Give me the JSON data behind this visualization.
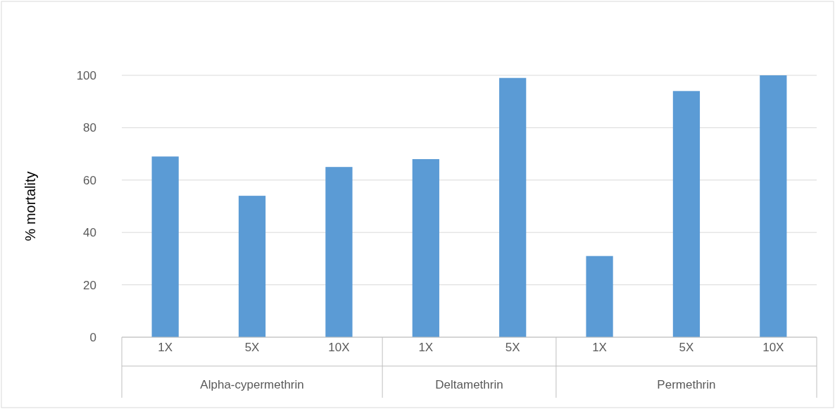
{
  "chart_data": {
    "type": "bar",
    "ylabel": "% mortality",
    "categories": [
      "1X",
      "5X",
      "10X",
      "1X",
      "5X",
      "1X",
      "5X",
      "10X"
    ],
    "values": [
      69,
      54,
      65,
      68,
      99,
      31,
      94,
      100
    ],
    "color": "#5b9bd5",
    "ylim": [
      0,
      100
    ],
    "yticks": [
      0,
      20,
      40,
      60,
      80,
      100
    ],
    "grid": "y",
    "annotations": [
      "Alpha-cypermethrin",
      "Deltamethrin",
      "Permethrin"
    ]
  }
}
